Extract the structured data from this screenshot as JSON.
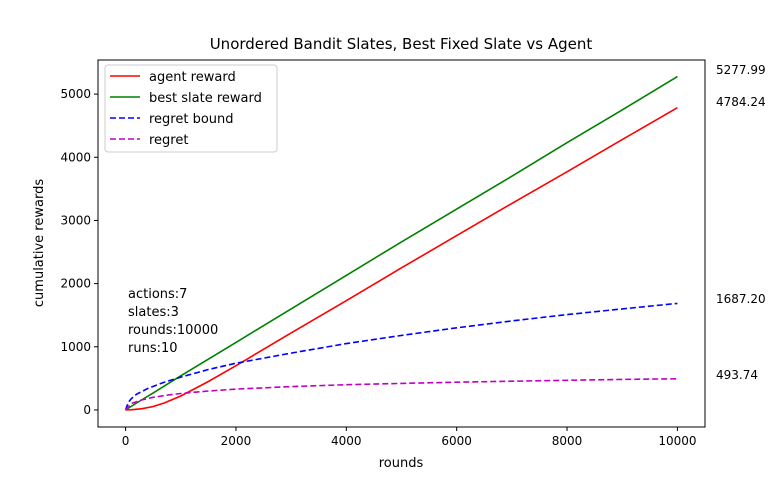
{
  "chart_data": {
    "type": "line",
    "title": "Unordered Bandit Slates, Best Fixed Slate vs Agent",
    "xlabel": "rounds",
    "ylabel": "cumulative rewards",
    "xlim": [
      -500,
      10500
    ],
    "ylim": [
      -270,
      5540
    ],
    "xticks": [
      0,
      2000,
      4000,
      6000,
      8000,
      10000
    ],
    "yticks": [
      0,
      1000,
      2000,
      3000,
      4000,
      5000
    ],
    "grid": false,
    "legend_position": "top-left",
    "colors": {
      "agent": "#ff0000",
      "best": "#008000",
      "bound": "#0000ff",
      "regret": "#bf00bf"
    },
    "series": [
      {
        "name": "agent reward",
        "style": "solid",
        "color_key": "agent",
        "x": [
          0,
          100,
          300,
          500,
          700,
          1000,
          1500,
          2000,
          3000,
          4000,
          5000,
          6000,
          7000,
          8000,
          9000,
          10000
        ],
        "y": [
          0,
          3,
          20,
          55,
          110,
          220,
          450,
          700,
          1220,
          1730,
          2250,
          2760,
          3270,
          3770,
          4280,
          4784.24
        ]
      },
      {
        "name": "best slate reward",
        "style": "solid",
        "color_key": "best",
        "x": [
          0,
          200,
          500,
          1000,
          2000,
          3000,
          4000,
          5000,
          6000,
          7000,
          8000,
          9000,
          10000
        ],
        "y": [
          0,
          110,
          270,
          540,
          1070,
          1600,
          2130,
          2660,
          3180,
          3700,
          4230,
          4750,
          5277.99
        ]
      },
      {
        "name": "regret bound",
        "style": "dashed",
        "color_key": "bound",
        "x": [
          0,
          50,
          100,
          200,
          400,
          700,
          1000,
          1500,
          2000,
          3000,
          4000,
          5000,
          6000,
          7000,
          8000,
          9000,
          10000
        ],
        "y": [
          0,
          120,
          175,
          250,
          340,
          440,
          520,
          640,
          740,
          900,
          1050,
          1180,
          1300,
          1410,
          1510,
          1600,
          1687.2
        ]
      },
      {
        "name": "regret",
        "style": "dashed",
        "color_key": "regret",
        "x": [
          0,
          100,
          300,
          500,
          800,
          1000,
          1500,
          2000,
          3000,
          4000,
          5000,
          6000,
          7000,
          8000,
          9000,
          10000
        ],
        "y": [
          0,
          100,
          160,
          200,
          240,
          260,
          300,
          330,
          370,
          400,
          420,
          440,
          455,
          470,
          483,
          493.74
        ]
      }
    ],
    "end_labels": [
      "5277.99",
      "4784.24",
      "1687.20",
      "493.74"
    ],
    "annotation_lines": [
      "actions:7",
      "slates:3",
      "rounds:10000",
      "runs:10"
    ]
  }
}
